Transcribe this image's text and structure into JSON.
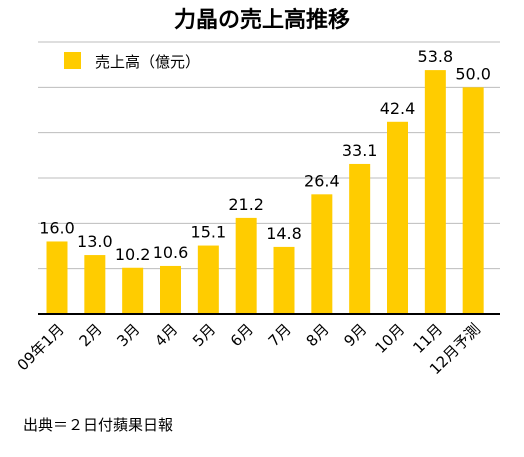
{
  "chart_data": {
    "type": "bar",
    "title": "力晶の売上高推移",
    "categories": [
      "09年1月",
      "2月",
      "3月",
      "4月",
      "5月",
      "6月",
      "7月",
      "8月",
      "9月",
      "10月",
      "11月",
      "12月予測"
    ],
    "series": [
      {
        "name": "売上高（億元）",
        "values": [
          16.0,
          13.0,
          10.2,
          10.6,
          15.1,
          21.2,
          14.8,
          26.4,
          33.1,
          42.4,
          53.8,
          50.0
        ]
      }
    ],
    "data_labels": [
      "16.0",
      "13.0",
      "10.2",
      "10.6",
      "15.1",
      "21.2",
      "14.8",
      "26.4",
      "33.1",
      "42.4",
      "53.8",
      "50.0"
    ],
    "ylim": [
      0,
      60
    ],
    "y_gridlines": [
      10,
      20,
      30,
      40,
      50,
      60
    ],
    "grid": "horizontal",
    "legend_position": "top-left",
    "bar_color": "#FFCC00",
    "gridline_color": "#bdbdbd",
    "xlabel": "",
    "ylabel": "",
    "source": "出典＝２日付蘋果日報"
  }
}
